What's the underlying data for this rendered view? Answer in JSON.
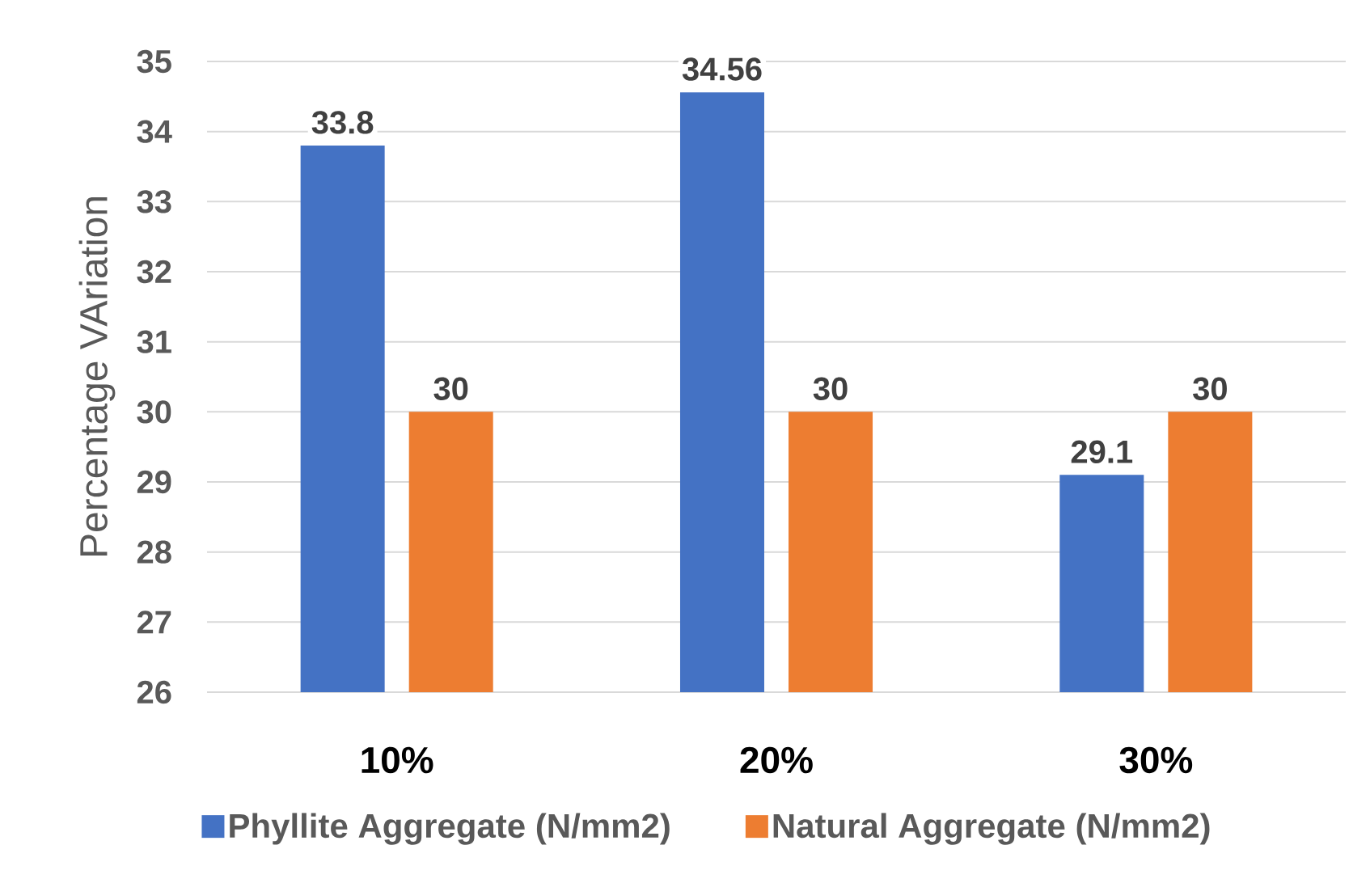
{
  "chart_data": {
    "type": "bar",
    "ylabel": "Percentage VAriation",
    "categories": [
      "10%",
      "20%",
      "30%"
    ],
    "series": [
      {
        "name": "Phyllite Aggregate (N/mm2)",
        "color": "#4472c4",
        "values": [
          33.8,
          34.56,
          29.1
        ]
      },
      {
        "name": "Natural Aggregate (N/mm2)",
        "color": "#ed7d31",
        "values": [
          30,
          30,
          30
        ]
      }
    ],
    "ylim": [
      26,
      35
    ],
    "yticks": [
      26,
      27,
      28,
      29,
      30,
      31,
      32,
      33,
      34,
      35
    ],
    "grid": "y",
    "legend": "bottom",
    "data_labels": true
  }
}
